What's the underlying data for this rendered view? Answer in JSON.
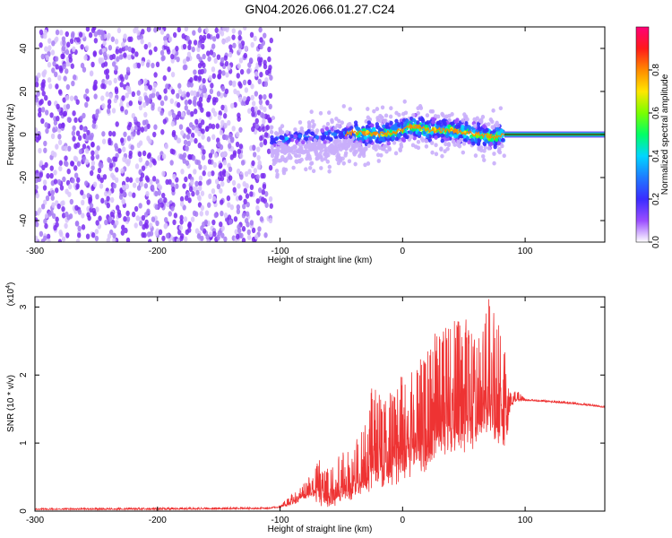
{
  "title": "GN04.2026.066.01.27.C24",
  "chart_data": [
    {
      "type": "heatmap",
      "xlabel": "Height of straight line (km)",
      "ylabel": "Frequency (Hz)",
      "xlim": [
        -300,
        165
      ],
      "ylim": [
        -50,
        50
      ],
      "xticks": [
        -300,
        -200,
        -100,
        0,
        100
      ],
      "yticks": [
        -40,
        -20,
        0,
        20,
        40
      ],
      "colorbar": {
        "label": "Normalized spectral amplitude",
        "range": [
          0,
          1
        ],
        "ticks": [
          "0.0",
          "0.2",
          "0.4",
          "0.6",
          "0.8"
        ],
        "tick_values": [
          0,
          0.2,
          0.4,
          0.6,
          0.8
        ],
        "colors": [
          "#ffffff",
          "#9a4dff",
          "#3a2cff",
          "#1f7aff",
          "#00d6ff",
          "#00ff66",
          "#7aff00",
          "#ffe600",
          "#ff8a00",
          "#ff1a1a",
          "#ff0077"
        ]
      },
      "regions": [
        {
          "x_range": [
            -300,
            -107
          ],
          "description": "broadband noise",
          "freq_spread": [
            -50,
            50
          ],
          "amplitude": [
            0.05,
            0.3
          ]
        },
        {
          "x_range": [
            -107,
            83
          ],
          "description": "signal band",
          "freq_spread": [
            -20,
            10
          ],
          "amplitude": [
            0.1,
            0.9
          ]
        },
        {
          "x_range": [
            83,
            165
          ],
          "description": "constant line",
          "freq": 0,
          "amplitude": 1.0
        }
      ],
      "center_line": [
        [
          -107,
          -3
        ],
        [
          -95,
          -2
        ],
        [
          -80,
          -1
        ],
        [
          -60,
          0
        ],
        [
          -40,
          1
        ],
        [
          -20,
          0
        ],
        [
          0,
          2
        ],
        [
          8,
          4
        ],
        [
          20,
          2
        ],
        [
          40,
          2
        ],
        [
          60,
          0
        ],
        [
          75,
          -1
        ],
        [
          83,
          0
        ],
        [
          165,
          0
        ]
      ]
    },
    {
      "type": "line",
      "xlabel": "Height of straight line (km)",
      "ylabel": "SNR (10 * v/v)",
      "yscale_label_base": "(x10",
      "yscale_label_exp": "4",
      "yscale_label_end": ")",
      "xlim": [
        -300,
        165
      ],
      "ylim": [
        0,
        3.15
      ],
      "xticks": [
        -300,
        -200,
        -100,
        0,
        100
      ],
      "yticks": [
        0,
        1,
        2,
        3
      ],
      "color": "#ee3333",
      "envelope_x": [
        -300,
        -200,
        -110,
        -100,
        -90,
        -75,
        -68,
        -60,
        -50,
        -40,
        -30,
        -25,
        -15,
        -5,
        0,
        10,
        20,
        25,
        30,
        40,
        50,
        60,
        70,
        80,
        85,
        88,
        90,
        92,
        100,
        120,
        140,
        165
      ],
      "envelope_low": [
        0.02,
        0.02,
        0.03,
        0.05,
        0.08,
        0.2,
        0.05,
        0.03,
        0.1,
        0.15,
        0.2,
        0.25,
        0.3,
        0.35,
        0.4,
        0.5,
        0.55,
        0.7,
        0.8,
        0.7,
        0.8,
        0.9,
        0.9,
        0.8,
        0.9,
        1.5,
        1.55,
        1.6,
        1.62,
        1.6,
        1.57,
        1.52
      ],
      "envelope_high": [
        0.04,
        0.05,
        0.06,
        0.08,
        0.25,
        0.5,
        0.8,
        0.6,
        0.9,
        1.0,
        1.3,
        1.9,
        1.6,
        1.9,
        2.0,
        2.1,
        2.4,
        2.6,
        2.7,
        2.8,
        2.9,
        2.5,
        3.15,
        2.7,
        2.4,
        1.75,
        1.7,
        1.8,
        1.65,
        1.63,
        1.6,
        1.55
      ]
    }
  ]
}
